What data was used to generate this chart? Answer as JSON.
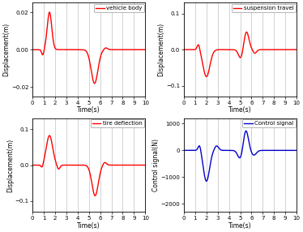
{
  "subplot1_label": "vehicle body",
  "subplot2_label": "suspension travel",
  "subplot3_label": "tire deflection",
  "subplot4_label": "Control signal",
  "ylabel1": "Displacement(m)",
  "ylabel2": "Displacement(m)",
  "ylabel3": "Displacement(m)",
  "ylabel4": "Control signal(N)",
  "xlabel": "Time(s)",
  "xlim": [
    0,
    10
  ],
  "ylim1": [
    -0.025,
    0.025
  ],
  "ylim2": [
    -0.13,
    0.13
  ],
  "ylim3": [
    -0.13,
    0.13
  ],
  "ylim4": [
    -2300,
    1200
  ],
  "yticks1": [
    -0.02,
    0,
    0.02
  ],
  "yticks2": [
    -0.1,
    0,
    0.1
  ],
  "yticks3": [
    -0.1,
    0,
    0.1
  ],
  "yticks4": [
    -2000,
    -1000,
    0,
    1000
  ],
  "xticks": [
    0,
    1,
    2,
    3,
    4,
    5,
    6,
    7,
    8,
    9,
    10
  ],
  "color_red": "#ff0000",
  "color_blue": "#0000cc",
  "line_width": 1.0,
  "grid_color": "#c0c0c0",
  "bg_color": "#ffffff",
  "tick_fontsize": 5.0,
  "label_fontsize": 5.5,
  "legend_fontsize": 5.0
}
